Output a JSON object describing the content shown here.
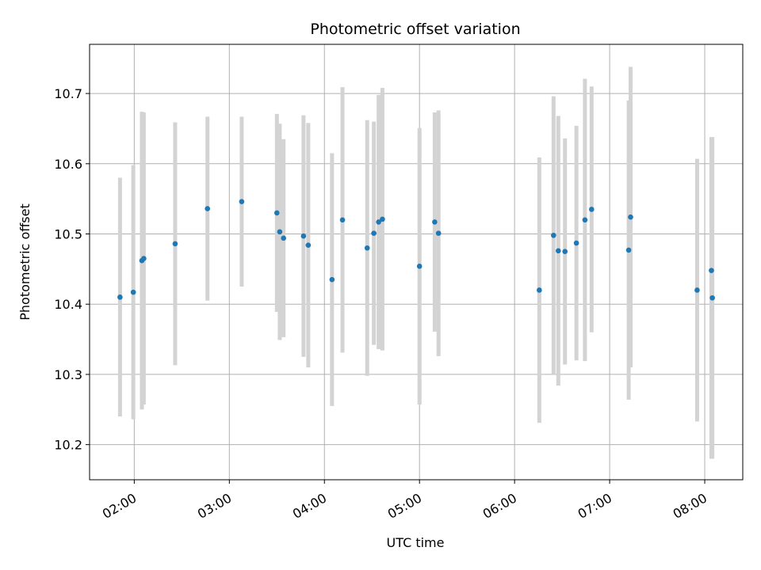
{
  "chart_data": {
    "type": "scatter",
    "title": "Photometric offset variation",
    "xlabel": "UTC time",
    "ylabel": "Photometric offset",
    "x_unit": "hours UTC",
    "xlim": [
      1.53,
      8.4
    ],
    "ylim": [
      10.15,
      10.77
    ],
    "x_ticks": [
      {
        "value": 2,
        "label": "02:00"
      },
      {
        "value": 3,
        "label": "03:00"
      },
      {
        "value": 4,
        "label": "04:00"
      },
      {
        "value": 5,
        "label": "05:00"
      },
      {
        "value": 6,
        "label": "06:00"
      },
      {
        "value": 7,
        "label": "07:00"
      },
      {
        "value": 8,
        "label": "08:00"
      }
    ],
    "y_ticks": [
      {
        "value": 10.2,
        "label": "10.2"
      },
      {
        "value": 10.3,
        "label": "10.3"
      },
      {
        "value": 10.4,
        "label": "10.4"
      },
      {
        "value": 10.5,
        "label": "10.5"
      },
      {
        "value": 10.6,
        "label": "10.6"
      },
      {
        "value": 10.7,
        "label": "10.7"
      }
    ],
    "grid": true,
    "colors": {
      "point": "#1f77b4",
      "errorbar": "#d3d3d3",
      "grid": "#b0b0b0"
    },
    "points": [
      {
        "x": 1.85,
        "y": 10.41,
        "lo": 10.24,
        "hi": 10.58
      },
      {
        "x": 1.99,
        "y": 10.417,
        "lo": 10.236,
        "hi": 10.598
      },
      {
        "x": 2.08,
        "y": 10.462,
        "lo": 10.25,
        "hi": 10.674
      },
      {
        "x": 2.1,
        "y": 10.465,
        "lo": 10.257,
        "hi": 10.673
      },
      {
        "x": 2.43,
        "y": 10.486,
        "lo": 10.313,
        "hi": 10.659
      },
      {
        "x": 2.77,
        "y": 10.536,
        "lo": 10.405,
        "hi": 10.667
      },
      {
        "x": 3.13,
        "y": 10.546,
        "lo": 10.425,
        "hi": 10.667
      },
      {
        "x": 3.5,
        "y": 10.53,
        "lo": 10.389,
        "hi": 10.671
      },
      {
        "x": 3.53,
        "y": 10.503,
        "lo": 10.349,
        "hi": 10.657
      },
      {
        "x": 3.57,
        "y": 10.494,
        "lo": 10.353,
        "hi": 10.635
      },
      {
        "x": 3.78,
        "y": 10.497,
        "lo": 10.325,
        "hi": 10.669
      },
      {
        "x": 3.83,
        "y": 10.484,
        "lo": 10.31,
        "hi": 10.658
      },
      {
        "x": 4.08,
        "y": 10.435,
        "lo": 10.255,
        "hi": 10.615
      },
      {
        "x": 4.19,
        "y": 10.52,
        "lo": 10.331,
        "hi": 10.709
      },
      {
        "x": 4.45,
        "y": 10.48,
        "lo": 10.298,
        "hi": 10.662
      },
      {
        "x": 4.52,
        "y": 10.501,
        "lo": 10.342,
        "hi": 10.66
      },
      {
        "x": 4.57,
        "y": 10.517,
        "lo": 10.336,
        "hi": 10.698
      },
      {
        "x": 4.61,
        "y": 10.521,
        "lo": 10.334,
        "hi": 10.708
      },
      {
        "x": 5.0,
        "y": 10.454,
        "lo": 10.257,
        "hi": 10.651
      },
      {
        "x": 5.16,
        "y": 10.517,
        "lo": 10.361,
        "hi": 10.673
      },
      {
        "x": 5.2,
        "y": 10.501,
        "lo": 10.326,
        "hi": 10.676
      },
      {
        "x": 6.26,
        "y": 10.42,
        "lo": 10.231,
        "hi": 10.609
      },
      {
        "x": 6.41,
        "y": 10.498,
        "lo": 10.3,
        "hi": 10.696
      },
      {
        "x": 6.46,
        "y": 10.476,
        "lo": 10.284,
        "hi": 10.668
      },
      {
        "x": 6.53,
        "y": 10.475,
        "lo": 10.314,
        "hi": 10.636
      },
      {
        "x": 6.65,
        "y": 10.487,
        "lo": 10.32,
        "hi": 10.654
      },
      {
        "x": 6.74,
        "y": 10.52,
        "lo": 10.319,
        "hi": 10.721
      },
      {
        "x": 6.81,
        "y": 10.535,
        "lo": 10.36,
        "hi": 10.71
      },
      {
        "x": 7.2,
        "y": 10.477,
        "lo": 10.264,
        "hi": 10.69
      },
      {
        "x": 7.22,
        "y": 10.524,
        "lo": 10.31,
        "hi": 10.738
      },
      {
        "x": 7.92,
        "y": 10.42,
        "lo": 10.233,
        "hi": 10.607
      },
      {
        "x": 8.07,
        "y": 10.448,
        "lo": 10.18,
        "hi": 10.638
      },
      {
        "x": 8.08,
        "y": 10.409,
        "lo": 10.18,
        "hi": 10.638
      }
    ]
  }
}
